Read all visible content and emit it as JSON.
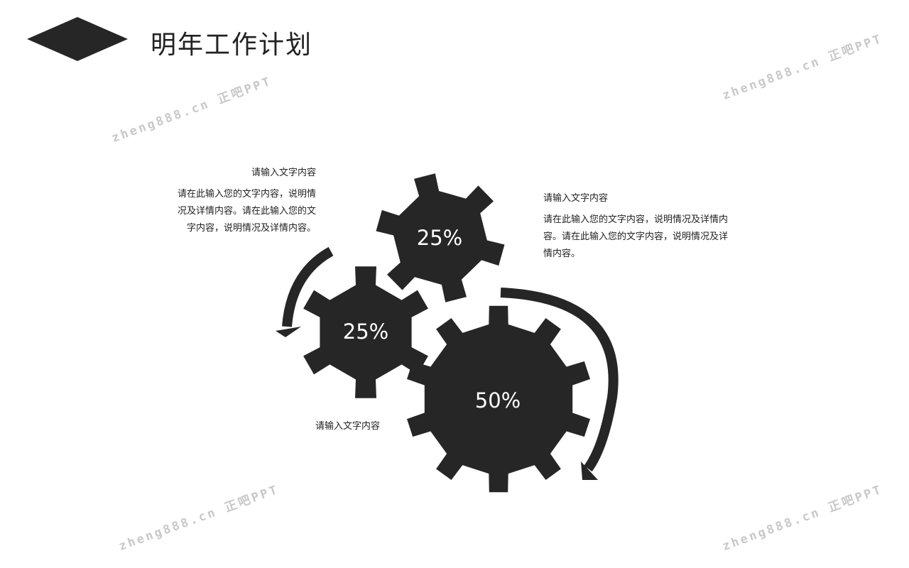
{
  "title": "明年工作计划",
  "colors": {
    "gear": "#262626",
    "text": "#222222",
    "watermark": "#c8c8c8"
  },
  "blocks": [
    {
      "heading": "请输入文字内容",
      "body": [
        "请在此输入您的文字内容，说明情",
        "况及详情内容。请在此输入您的文",
        "字内容，说明情况及详情内容。"
      ]
    },
    {
      "heading": "请输入文字内容",
      "body": [
        "请在此输入您的文字内容，说明情况及详情内",
        "容。请在此输入您的文字内容，说明情况及详",
        "情内容。"
      ]
    },
    {
      "heading": "请输入文字内容"
    }
  ],
  "gears": [
    {
      "label": "25%",
      "value": 25
    },
    {
      "label": "25%",
      "value": 25
    },
    {
      "label": "50%",
      "value": 50
    }
  ],
  "watermark": "zheng888.cn 正吧PPT"
}
